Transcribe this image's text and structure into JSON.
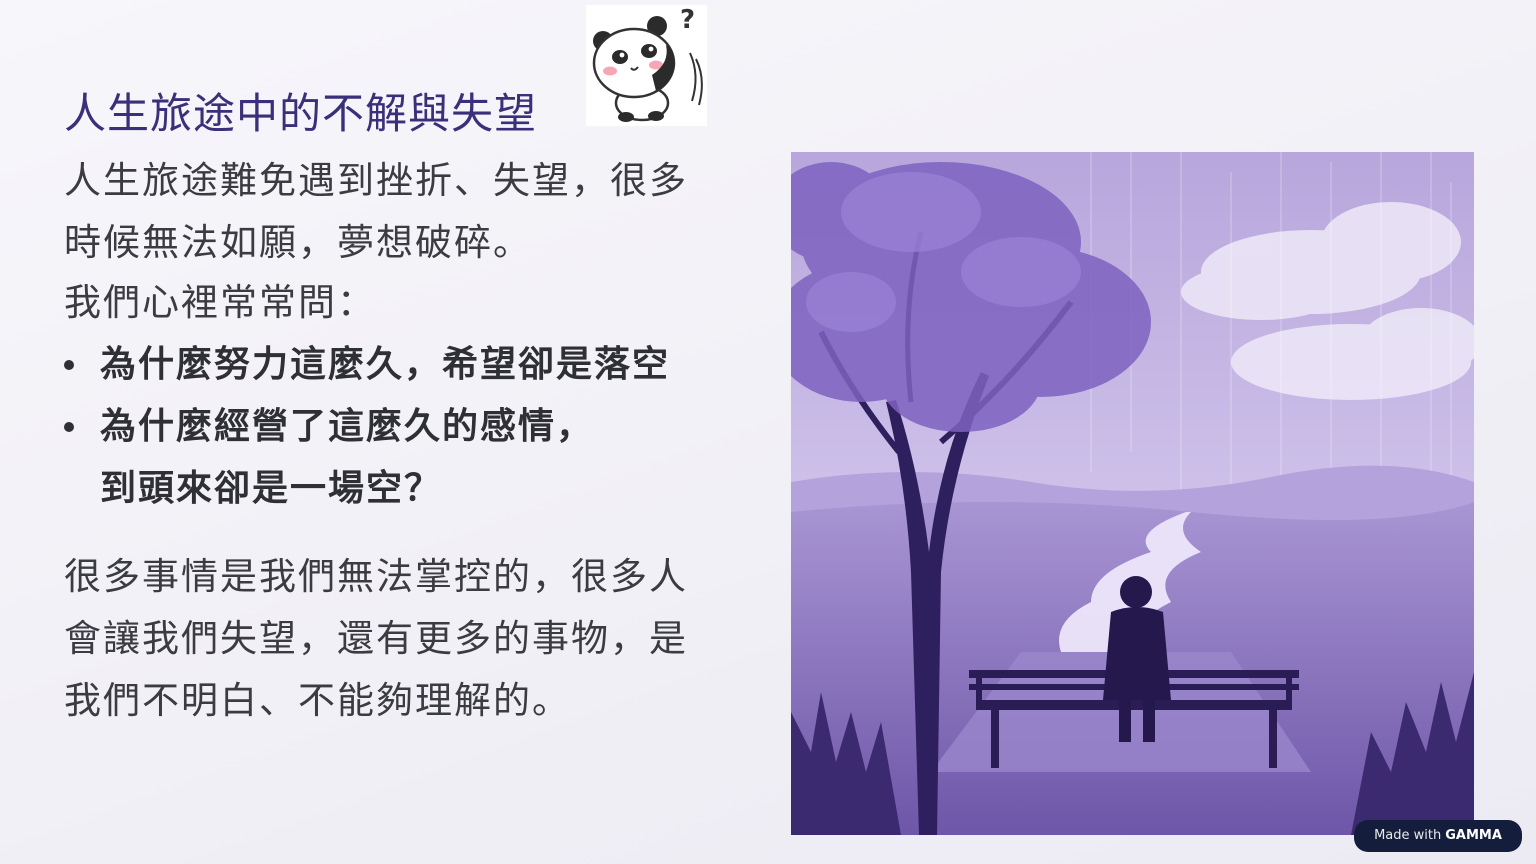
{
  "slide": {
    "title": "人生旅途中的不解與失望",
    "intro_line1": "人生旅途難免遇到挫折、失望，很多",
    "intro_line2": "時候無法如願，夢想破碎。",
    "question_lead": "我們心裡常常問：",
    "bullets": [
      {
        "text": "為什麼努力這麼久，希望卻是落空"
      },
      {
        "line1": "為什麼經營了這麼久的感情，",
        "line2": "到頭來卻是一場空？"
      }
    ],
    "closing_line1": "很多事情是我們無法掌控的，很多人",
    "closing_line2": "會讓我們失望，還有更多的事物，是",
    "closing_line3": "我們不明白、不能夠理解的。"
  },
  "sticker": {
    "icon": "panda-question-icon",
    "glyph": "?"
  },
  "illustration": {
    "icon": "lonely-bench-tree-illustration"
  },
  "badge": {
    "made_with": "Made with",
    "brand": "GAMMA"
  },
  "colors": {
    "title": "#3a2f7a",
    "body_text": "#3b3b42",
    "scene_sky": "#c9bce6",
    "scene_tree": "#7e62c0",
    "badge_bg": "#141e3c"
  }
}
